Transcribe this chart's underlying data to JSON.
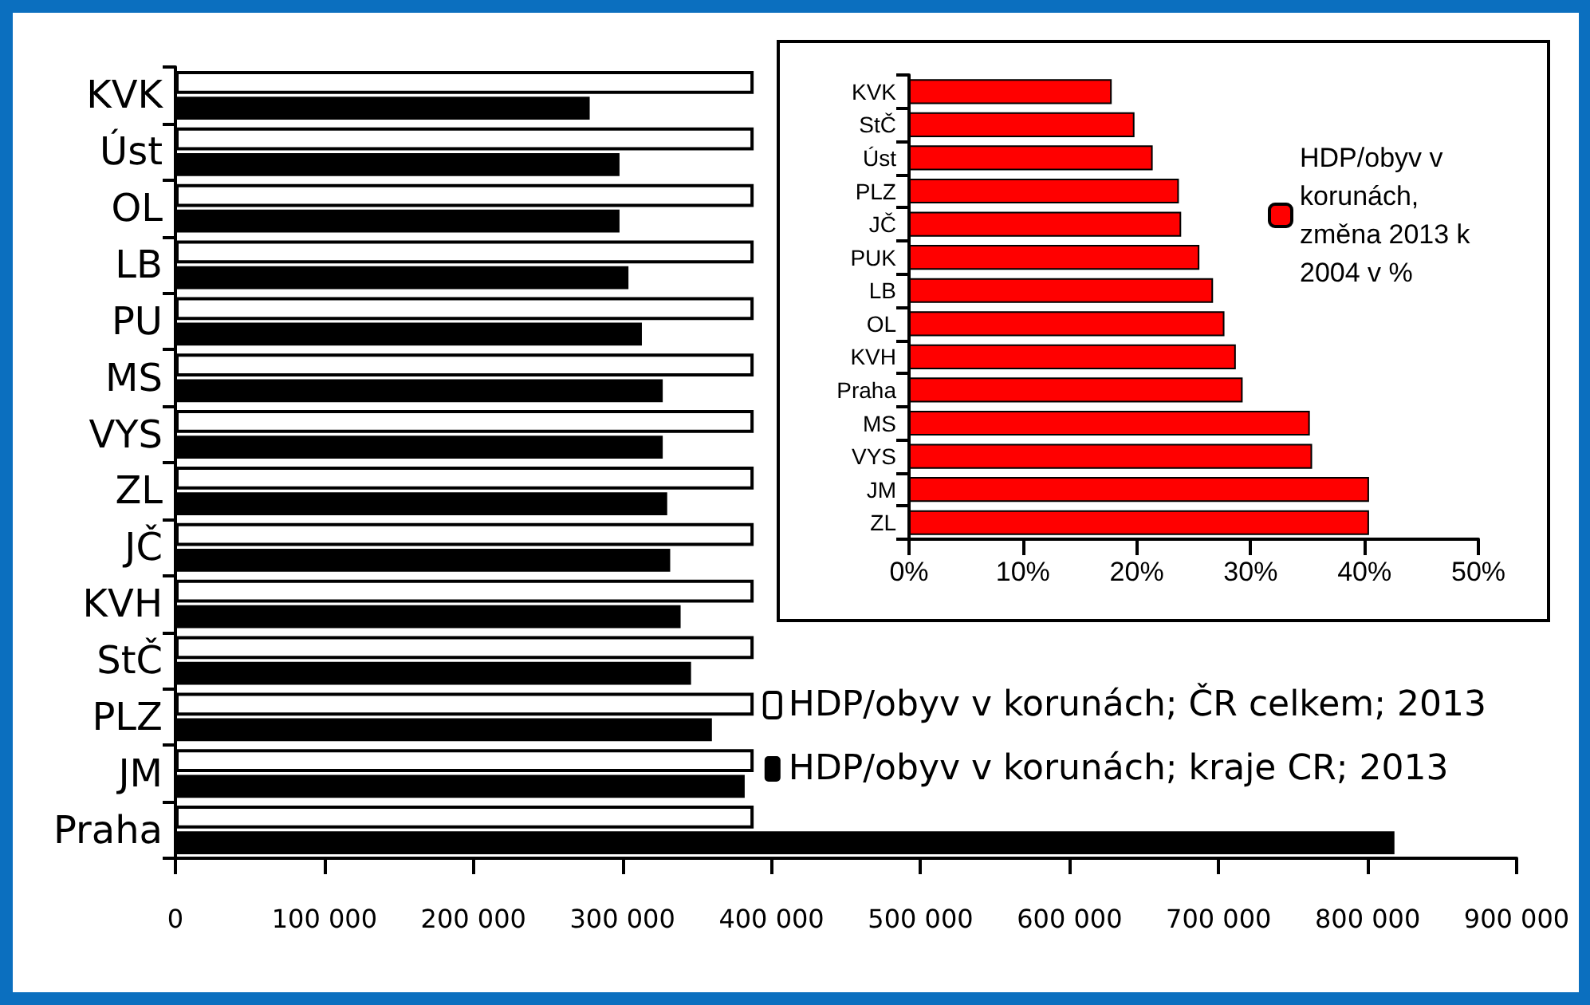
{
  "chart_data": [
    {
      "type": "bar",
      "orientation": "horizontal",
      "categories": [
        "KVK",
        "Úst",
        "OL",
        "LB",
        "PU",
        "MS",
        "VYS",
        "ZL",
        "JČ",
        "KVH",
        "StČ",
        "PLZ",
        "JM",
        "Praha"
      ],
      "series": [
        {
          "name": "HDP/obyv v korunách; ČR celkem; 2013",
          "color": "#ffffff",
          "values": [
            388000,
            388000,
            388000,
            388000,
            388000,
            388000,
            388000,
            388000,
            388000,
            388000,
            388000,
            388000,
            388000,
            388000
          ]
        },
        {
          "name": "HDP/obyv v korunách; kraje CR; 2013",
          "color": "#000000",
          "values": [
            278000,
            298000,
            298000,
            304000,
            313000,
            327000,
            327000,
            330000,
            332000,
            339000,
            346000,
            360000,
            382000,
            818000
          ]
        }
      ],
      "xlim": [
        0,
        900000
      ],
      "xticks": [
        0,
        {
          "value": 100000,
          "label": "100 000"
        },
        {
          "value": 200000,
          "label": "200 000"
        },
        {
          "value": 300000,
          "label": "300 000"
        },
        {
          "value": 400000,
          "label": "400 000"
        },
        {
          "value": 500000,
          "label": "500 000"
        },
        {
          "value": 600000,
          "label": "600 000"
        },
        {
          "value": 700000,
          "label": "700 000"
        },
        {
          "value": 800000,
          "label": "800 000"
        },
        {
          "value": 900000,
          "label": "900 000"
        }
      ],
      "grid": false,
      "legend": "bottom right"
    },
    {
      "type": "bar",
      "orientation": "horizontal",
      "categories": [
        "KVK",
        "StČ",
        "Úst",
        "PLZ",
        "JČ",
        "PUK",
        "LB",
        "OL",
        "KVH",
        "Praha",
        "MS",
        "VYS",
        "JM",
        "ZL"
      ],
      "series": [
        {
          "name": "HDP/obyv v korunách, změna 2013 k 2004 v %",
          "color": "#ff0000",
          "values": [
            17.8,
            19.8,
            21.4,
            23.7,
            23.9,
            25.5,
            26.7,
            27.7,
            28.7,
            29.3,
            35.2,
            35.4,
            40.4,
            40.4
          ]
        }
      ],
      "xlim": [
        0,
        50
      ],
      "xticks": [
        {
          "value": 0,
          "label": "0%"
        },
        {
          "value": 10,
          "label": "10%"
        },
        {
          "value": 20,
          "label": "20%"
        },
        {
          "value": 30,
          "label": "30%"
        },
        {
          "value": 40,
          "label": "40%"
        },
        {
          "value": 50,
          "label": "50%"
        }
      ],
      "grid": false,
      "legend": "top right"
    }
  ]
}
